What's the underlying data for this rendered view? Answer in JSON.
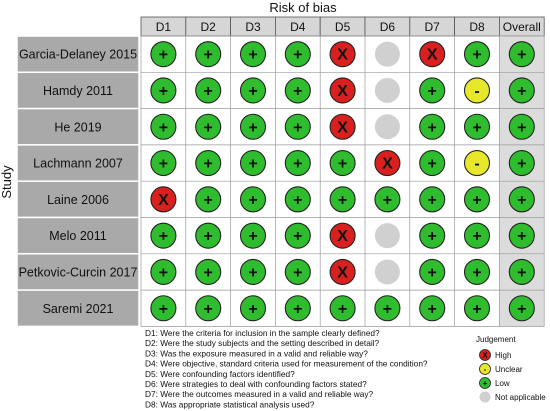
{
  "chart_data": {
    "type": "table",
    "title": "Risk of bias",
    "ylabel": "Study",
    "columns": [
      "D1",
      "D2",
      "D3",
      "D4",
      "D5",
      "D6",
      "D7",
      "D8",
      "Overall"
    ],
    "studies": [
      {
        "name": "Garcia-Delaney 2015",
        "judgements": [
          "low",
          "low",
          "low",
          "low",
          "high",
          "na",
          "high",
          "low",
          "low"
        ]
      },
      {
        "name": "Hamdy 2011",
        "judgements": [
          "low",
          "low",
          "low",
          "low",
          "high",
          "na",
          "low",
          "unclear",
          "low"
        ]
      },
      {
        "name": "He 2019",
        "judgements": [
          "low",
          "low",
          "low",
          "low",
          "high",
          "na",
          "low",
          "low",
          "low"
        ]
      },
      {
        "name": "Lachmann 2007",
        "judgements": [
          "low",
          "low",
          "low",
          "low",
          "low",
          "high",
          "low",
          "unclear",
          "low"
        ]
      },
      {
        "name": "Laine 2006",
        "judgements": [
          "high",
          "low",
          "low",
          "low",
          "low",
          "low",
          "low",
          "low",
          "low"
        ]
      },
      {
        "name": "Melo 2011",
        "judgements": [
          "low",
          "low",
          "low",
          "low",
          "high",
          "na",
          "low",
          "low",
          "low"
        ]
      },
      {
        "name": "Petkovic-Curcin 2017",
        "judgements": [
          "low",
          "low",
          "low",
          "low",
          "high",
          "na",
          "low",
          "low",
          "low"
        ]
      },
      {
        "name": "Saremi 2021",
        "judgements": [
          "low",
          "low",
          "low",
          "low",
          "low",
          "low",
          "low",
          "low",
          "low"
        ]
      }
    ],
    "symbols": {
      "high": "X",
      "unclear": "-",
      "low": "+",
      "na": ""
    },
    "colors": {
      "high": "#d9201f",
      "unclear": "#e8e82a",
      "low": "#2fbd2f",
      "na": "#d0d0d0"
    },
    "domain_notes": [
      "D1: Were the criteria for inclusion in the sample clearly defined?",
      "D2: Were the study subjects and the setting described in detail?",
      "D3: Was the exposure measured in a valid and reliable way?",
      "D4: Were objective, standard criteria used for measurement of the condition?",
      "D5: Were confounding factors identified?",
      "D6: Were strategies to deal with confounding factors stated?",
      "D7: Were the outcomes measured in a valid and reliable way?",
      "D8: Was appropriate statistical analysis used?"
    ],
    "legend": {
      "title": "Judgement",
      "items": [
        {
          "key": "high",
          "label": "High"
        },
        {
          "key": "unclear",
          "label": "Unclear"
        },
        {
          "key": "low",
          "label": "Low"
        },
        {
          "key": "na",
          "label": "Not applicable"
        }
      ]
    }
  }
}
